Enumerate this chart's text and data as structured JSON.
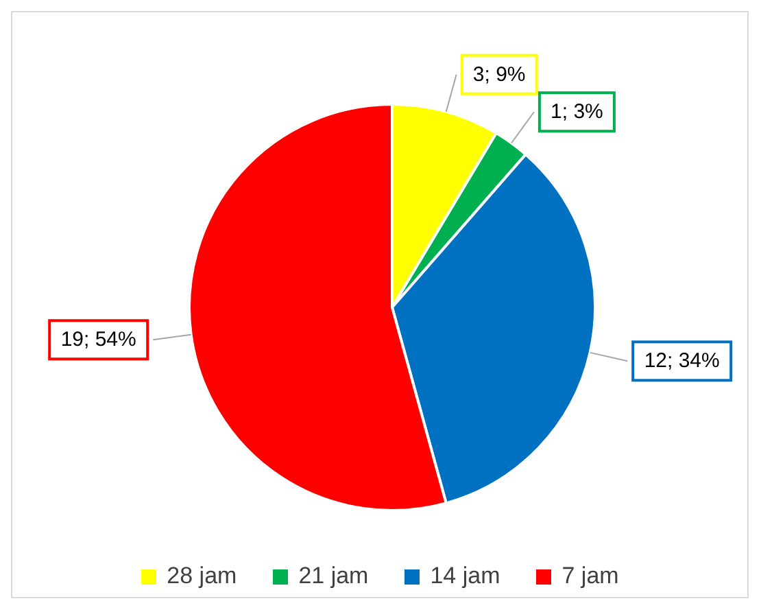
{
  "chart_data": {
    "type": "pie",
    "categories": [
      "28 jam",
      "21 jam",
      "14 jam",
      "7 jam"
    ],
    "values": [
      3,
      1,
      12,
      19
    ],
    "colors": [
      "#ffff00",
      "#00b050",
      "#0070c0",
      "#ff0000"
    ],
    "value_labels": [
      "3; 9%",
      "1; 3%",
      "12; 34%",
      "19; 54%"
    ],
    "legend": "bottom"
  }
}
